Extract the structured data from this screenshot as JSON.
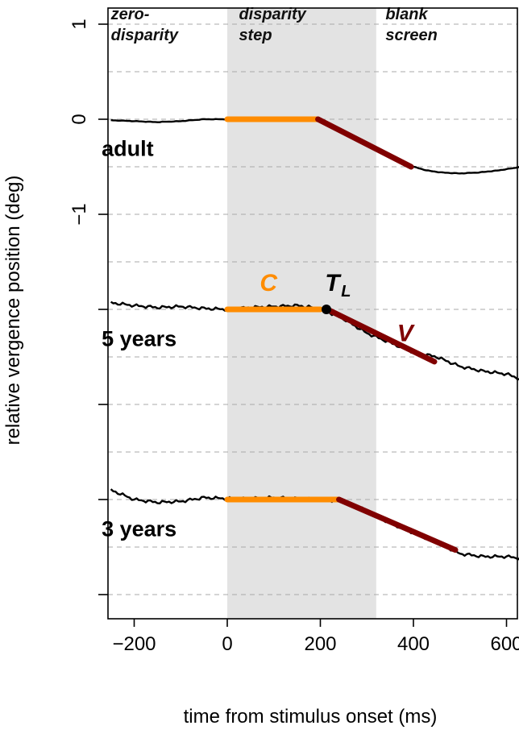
{
  "chart_data": {
    "type": "line",
    "xlabel": "time from stimulus onset (ms)",
    "ylabel": "relative vergence position (deg)",
    "xlim": [
      -275,
      680
    ],
    "ylim": [
      -5,
      1.15
    ],
    "x_ticks": [
      {
        "value": -200,
        "label": "−200"
      },
      {
        "value": 0,
        "label": "0"
      },
      {
        "value": 200,
        "label": "200"
      },
      {
        "value": 400,
        "label": "400"
      },
      {
        "value": 600,
        "label": "600"
      }
    ],
    "y_ticks": [
      {
        "value": 1,
        "label": "1"
      },
      {
        "value": 0,
        "label": "0"
      },
      {
        "value": -1,
        "label": "−1"
      },
      {
        "value": -2,
        "label": ""
      },
      {
        "value": -3,
        "label": ""
      },
      {
        "value": -4,
        "label": ""
      },
      {
        "value": -5,
        "label": ""
      }
    ],
    "grid": "horizontal dashed every 0.5 deg",
    "shaded_region": {
      "x0": 0,
      "x1": 320,
      "color": "#e3e3e3"
    },
    "phase_labels": [
      {
        "line1": "zero-",
        "line2": "disparity",
        "x": -250
      },
      {
        "line1": "disparity",
        "line2": "step",
        "x": 25
      },
      {
        "line1": "blank",
        "line2": "screen",
        "x": 340
      }
    ],
    "colors": {
      "trace": "#000000",
      "constant": "#ff8c00",
      "velocity": "#800000",
      "grid": "#aaaaaa",
      "shade": "#e3e3e3"
    },
    "series": [
      {
        "name": "adult",
        "label_pos": [
          -270,
          -0.3
        ],
        "trace": [
          [
            -250,
            -0.01
          ],
          [
            -200,
            -0.02
          ],
          [
            -150,
            -0.03
          ],
          [
            -100,
            -0.02
          ],
          [
            -50,
            0.0
          ],
          [
            0,
            0.0
          ],
          [
            50,
            0.0
          ],
          [
            100,
            0.0
          ],
          [
            150,
            0.0
          ],
          [
            200,
            0.0
          ],
          [
            250,
            -0.15
          ],
          [
            300,
            -0.28
          ],
          [
            350,
            -0.4
          ],
          [
            400,
            -0.5
          ],
          [
            430,
            -0.54
          ],
          [
            460,
            -0.56
          ],
          [
            500,
            -0.57
          ],
          [
            540,
            -0.56
          ],
          [
            580,
            -0.54
          ],
          [
            620,
            -0.51
          ],
          [
            650,
            -0.47
          ],
          [
            680,
            -0.42
          ]
        ],
        "constant_segment": [
          [
            0,
            0.0
          ],
          [
            195,
            0.0
          ]
        ],
        "velocity_segment": [
          [
            195,
            0.0
          ],
          [
            395,
            -0.5
          ]
        ]
      },
      {
        "name": "5 years",
        "label_pos": [
          -270,
          -2.3
        ],
        "trace": [
          [
            -250,
            -1.93
          ],
          [
            -200,
            -1.96
          ],
          [
            -150,
            -1.98
          ],
          [
            -100,
            -1.97
          ],
          [
            -50,
            -1.99
          ],
          [
            0,
            -2.0
          ],
          [
            50,
            -1.98
          ],
          [
            100,
            -1.97
          ],
          [
            150,
            -1.96
          ],
          [
            200,
            -1.99
          ],
          [
            250,
            -2.1
          ],
          [
            300,
            -2.25
          ],
          [
            350,
            -2.35
          ],
          [
            400,
            -2.45
          ],
          [
            450,
            -2.5
          ],
          [
            500,
            -2.6
          ],
          [
            550,
            -2.65
          ],
          [
            600,
            -2.68
          ],
          [
            640,
            -2.75
          ],
          [
            680,
            -2.7
          ]
        ],
        "constant_segment": [
          [
            0,
            -2.0
          ],
          [
            200,
            -2.0
          ]
        ],
        "velocity_segment": [
          [
            215,
            -2.0
          ],
          [
            445,
            -2.55
          ]
        ],
        "tl_point": [
          213,
          -2.0
        ]
      },
      {
        "name": "3 years",
        "label_pos": [
          -270,
          -4.3
        ],
        "trace": [
          [
            -250,
            -3.9
          ],
          [
            -200,
            -4.0
          ],
          [
            -150,
            -4.03
          ],
          [
            -100,
            -4.02
          ],
          [
            -50,
            -3.98
          ],
          [
            0,
            -3.99
          ],
          [
            50,
            -3.99
          ],
          [
            100,
            -3.98
          ],
          [
            150,
            -3.99
          ],
          [
            200,
            -4.0
          ],
          [
            250,
            -4.02
          ],
          [
            300,
            -4.12
          ],
          [
            350,
            -4.25
          ],
          [
            400,
            -4.35
          ],
          [
            450,
            -4.45
          ],
          [
            500,
            -4.57
          ],
          [
            550,
            -4.6
          ],
          [
            600,
            -4.6
          ],
          [
            650,
            -4.63
          ],
          [
            680,
            -4.65
          ]
        ],
        "constant_segment": [
          [
            0,
            -4.0
          ],
          [
            240,
            -4.0
          ]
        ],
        "velocity_segment": [
          [
            240,
            -4.0
          ],
          [
            490,
            -4.53
          ]
        ]
      }
    ],
    "annotations": [
      {
        "text": "C",
        "x": 70,
        "y": -1.72,
        "color": "#ff8c00"
      },
      {
        "text": "T",
        "sub": "L",
        "x": 210,
        "y": -1.72,
        "color": "#000000"
      },
      {
        "text": "V",
        "x": 365,
        "y": -2.25,
        "color": "#800000"
      }
    ]
  }
}
